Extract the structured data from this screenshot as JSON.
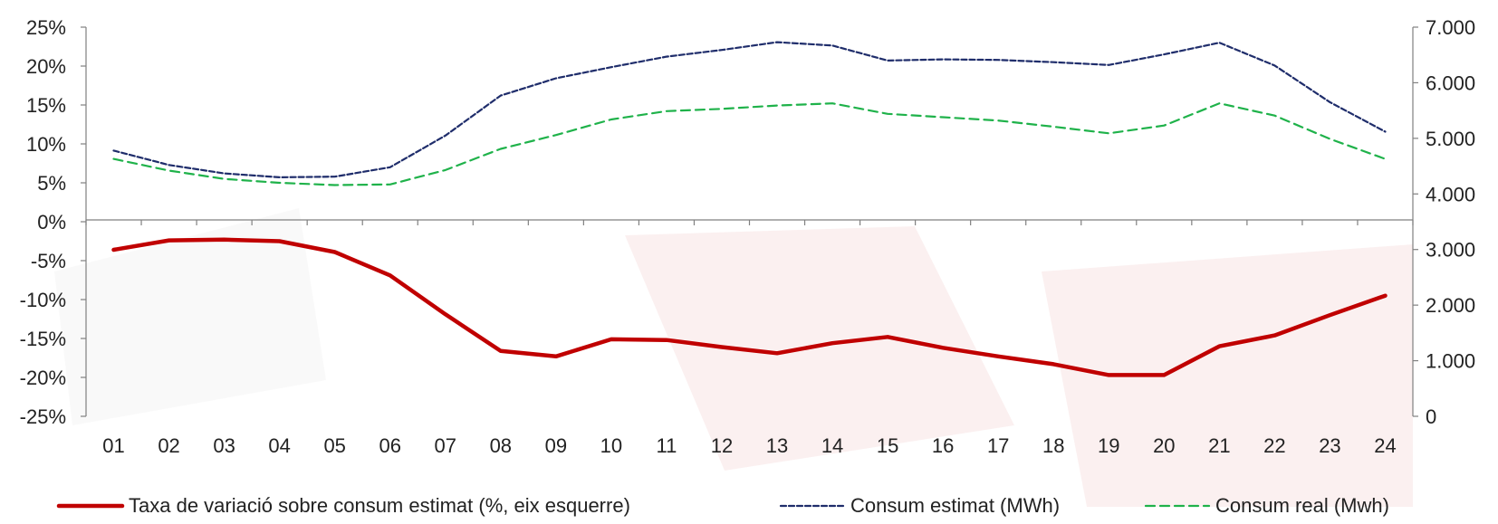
{
  "chart_data": {
    "type": "line",
    "categories": [
      "01",
      "02",
      "03",
      "04",
      "05",
      "06",
      "07",
      "08",
      "09",
      "10",
      "11",
      "12",
      "13",
      "14",
      "15",
      "16",
      "17",
      "18",
      "19",
      "20",
      "21",
      "22",
      "23",
      "24"
    ],
    "y_left": {
      "range": [
        -25,
        25
      ],
      "ticks": [
        25,
        20,
        15,
        10,
        5,
        0,
        -5,
        -10,
        -15,
        -20,
        -25
      ],
      "tick_labels": [
        "25%",
        "20%",
        "15%",
        "10%",
        "5%",
        "0%",
        "-5%",
        "-10%",
        "-15%",
        "-20%",
        "-25%"
      ]
    },
    "y_right": {
      "range": [
        0,
        7000
      ],
      "ticks": [
        7000,
        6000,
        5000,
        4000,
        3000,
        2000,
        1000,
        0
      ],
      "tick_labels": [
        "7.000",
        "6.000",
        "5.000",
        "4.000",
        "3.000",
        "2.000",
        "1.000",
        "0"
      ]
    },
    "series": [
      {
        "name": "Taxa de variació sobre consum estimat (%, eix esquerre)",
        "axis": "left",
        "color": "#c00000",
        "style": "solid",
        "values": [
          -3.6,
          -2.4,
          -2.3,
          -2.5,
          -3.9,
          -6.9,
          -11.9,
          -16.6,
          -17.3,
          -15.1,
          -15.2,
          -16.1,
          -16.9,
          -15.6,
          -14.8,
          -16.2,
          -17.3,
          -18.3,
          -19.7,
          -19.7,
          -16.0,
          -14.6,
          -12.0,
          -9.5
        ]
      },
      {
        "name": "Consum estimat (MWh)",
        "axis": "right",
        "color": "#1f2d6b",
        "style": "dashed",
        "values": [
          4780,
          4520,
          4370,
          4300,
          4310,
          4480,
          5050,
          5770,
          6080,
          6280,
          6470,
          6590,
          6730,
          6670,
          6400,
          6420,
          6410,
          6370,
          6320,
          6510,
          6720,
          6310,
          5650,
          5120
        ]
      },
      {
        "name": "Consum real (Mwh)",
        "axis": "right",
        "color": "#1fb24a",
        "style": "dashed",
        "values": [
          4630,
          4420,
          4270,
          4200,
          4160,
          4170,
          4430,
          4810,
          5060,
          5340,
          5490,
          5530,
          5590,
          5630,
          5440,
          5380,
          5320,
          5210,
          5090,
          5230,
          5630,
          5410,
          4990,
          4630
        ]
      }
    ],
    "legend_position": "bottom",
    "grid": false
  }
}
